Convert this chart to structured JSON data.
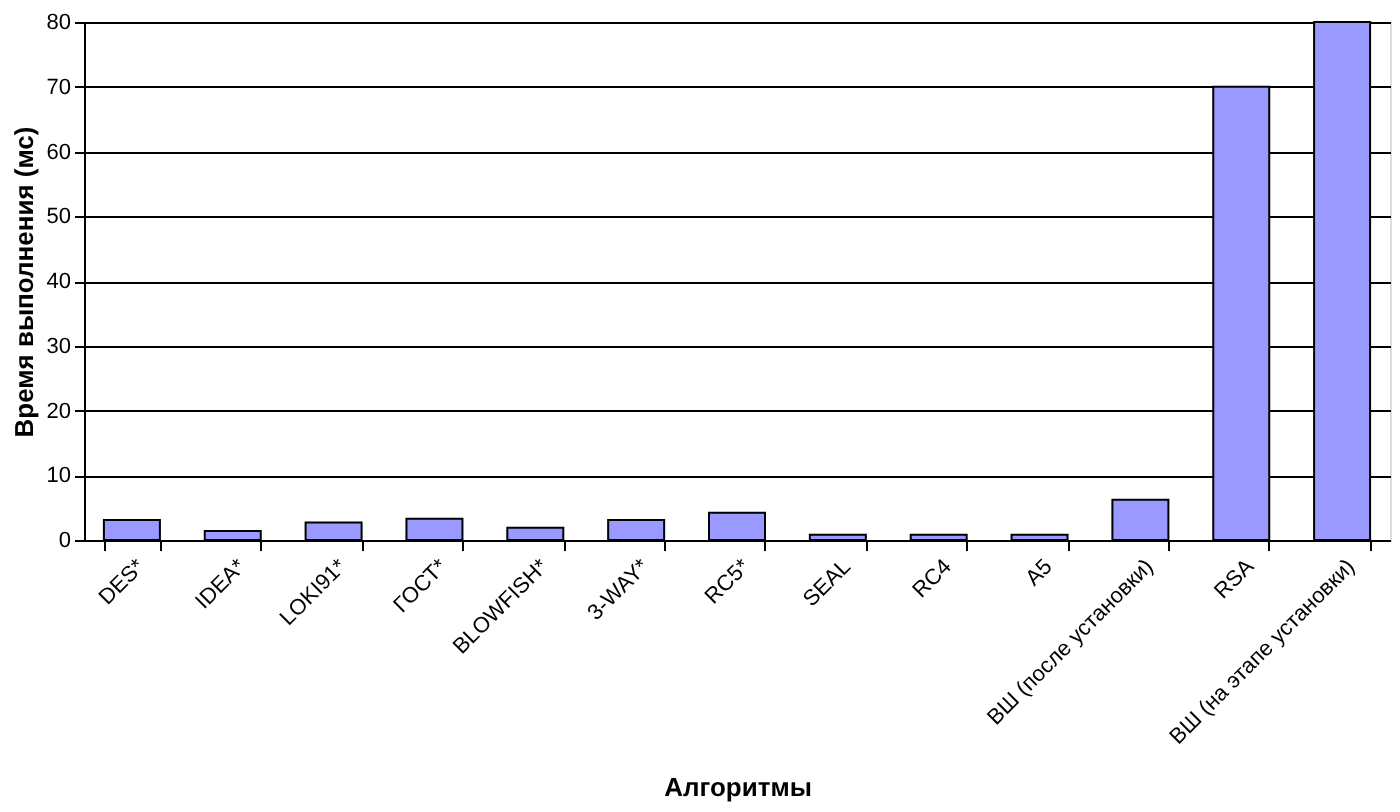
{
  "chart_data": {
    "type": "bar",
    "xlabel": "Алгоритмы",
    "ylabel": "Время выполнения (мс)",
    "categories": [
      "DES*",
      "IDEA*",
      "LOKI91*",
      "ГОСТ*",
      "BLOWFISH*",
      "3-WAY*",
      "RC5*",
      "SEAL",
      "RC4",
      "A5",
      "ВШ (после установки)",
      "RSA",
      "ВШ (на этапе установки)"
    ],
    "values": [
      3.1,
      1.4,
      2.7,
      3.3,
      1.9,
      3.1,
      4.2,
      0.8,
      0.8,
      0.8,
      6.2,
      70,
      80
    ],
    "color": "#9999ff",
    "ylim": [
      0,
      80
    ],
    "yticks": [
      0,
      10,
      20,
      30,
      40,
      50,
      60,
      70,
      80
    ],
    "grid": "y"
  }
}
